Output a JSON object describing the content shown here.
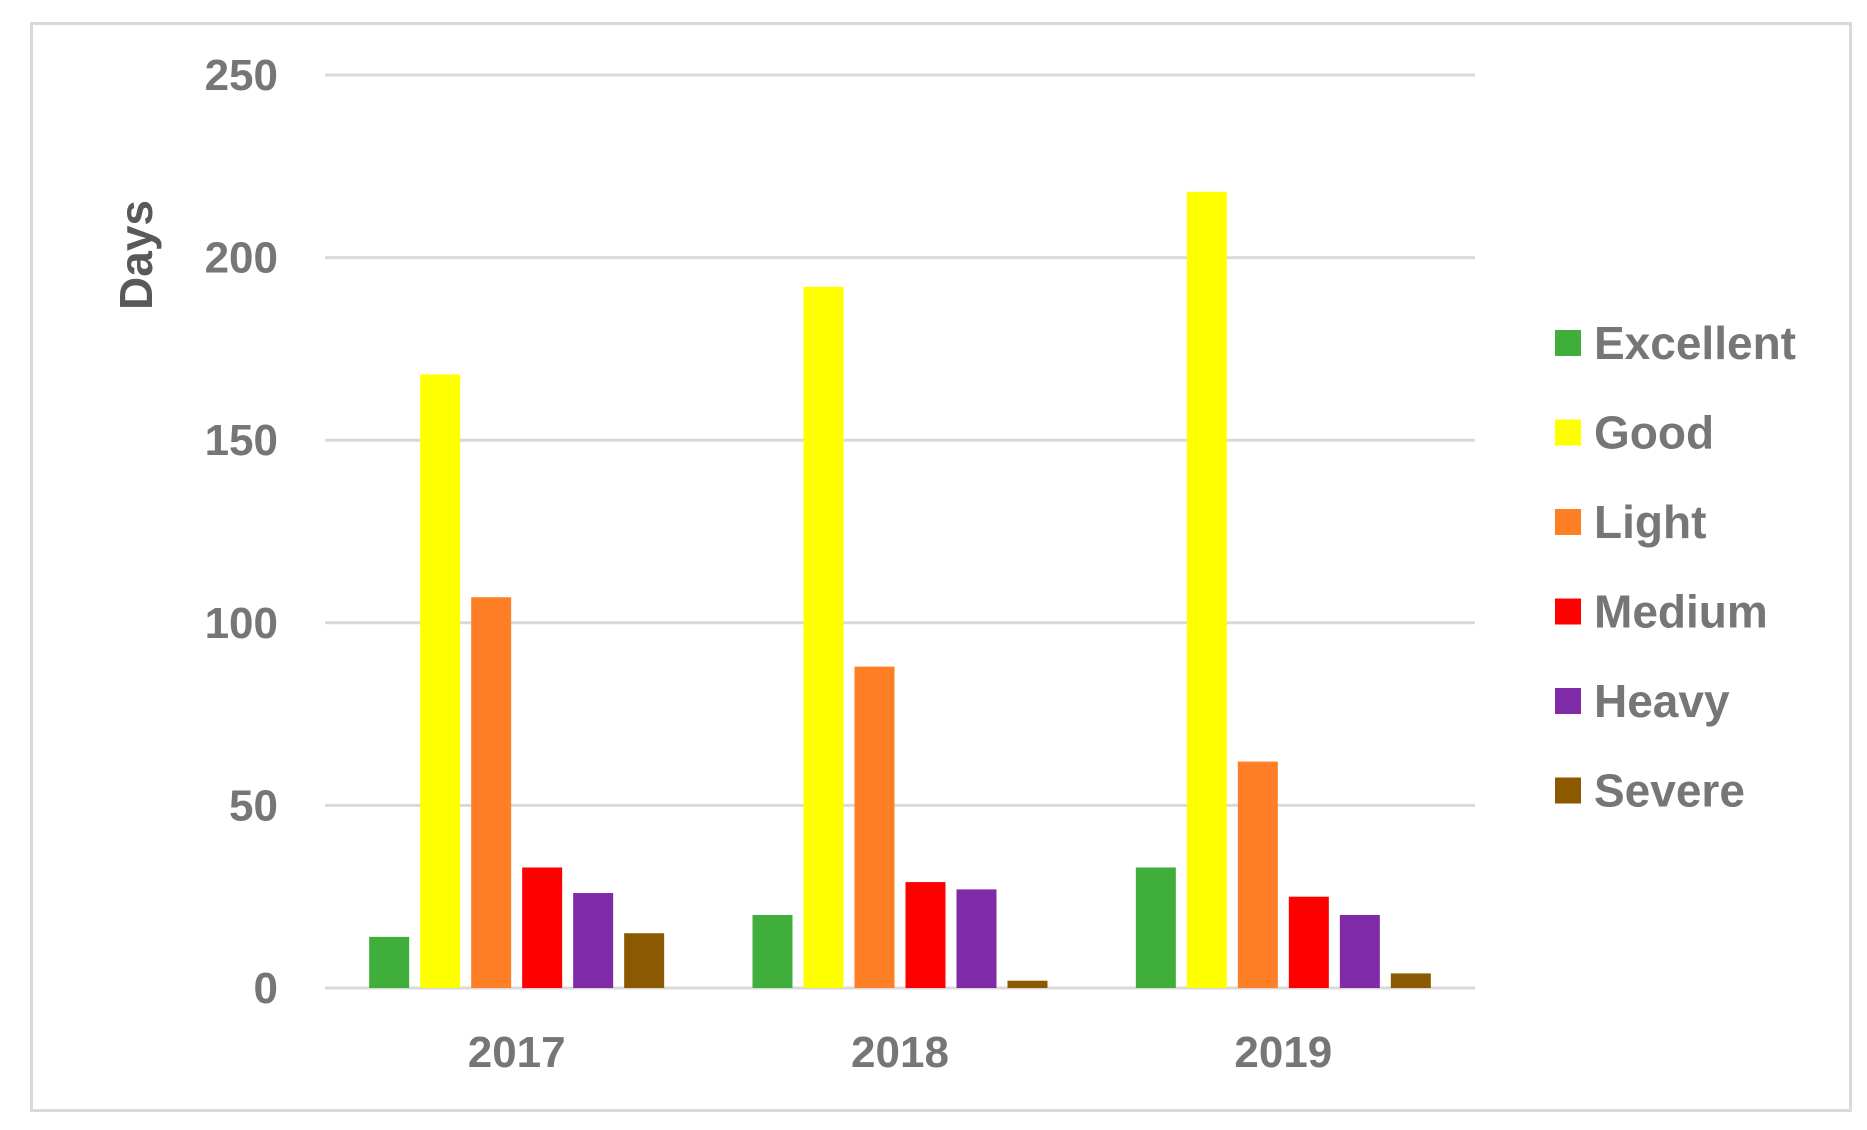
{
  "chart_data": {
    "type": "bar",
    "title": "",
    "xlabel": "",
    "ylabel": "Days",
    "ylim": [
      0,
      250
    ],
    "yticks": [
      0,
      50,
      100,
      150,
      200,
      250
    ],
    "grid": true,
    "legend_position": "right",
    "categories": [
      "2017",
      "2018",
      "2019"
    ],
    "series": [
      {
        "name": "Excellent",
        "color": "#3fae3a",
        "values": [
          14,
          20,
          33
        ]
      },
      {
        "name": "Good",
        "color": "#ffff00",
        "values": [
          168,
          192,
          218
        ]
      },
      {
        "name": "Light",
        "color": "#ff7f27",
        "values": [
          107,
          88,
          62
        ]
      },
      {
        "name": "Medium",
        "color": "#ff0000",
        "values": [
          33,
          29,
          25
        ]
      },
      {
        "name": "Heavy",
        "color": "#7f2aa6",
        "values": [
          26,
          27,
          20
        ]
      },
      {
        "name": "Severe",
        "color": "#8b5a00",
        "values": [
          15,
          2,
          4
        ]
      }
    ]
  }
}
